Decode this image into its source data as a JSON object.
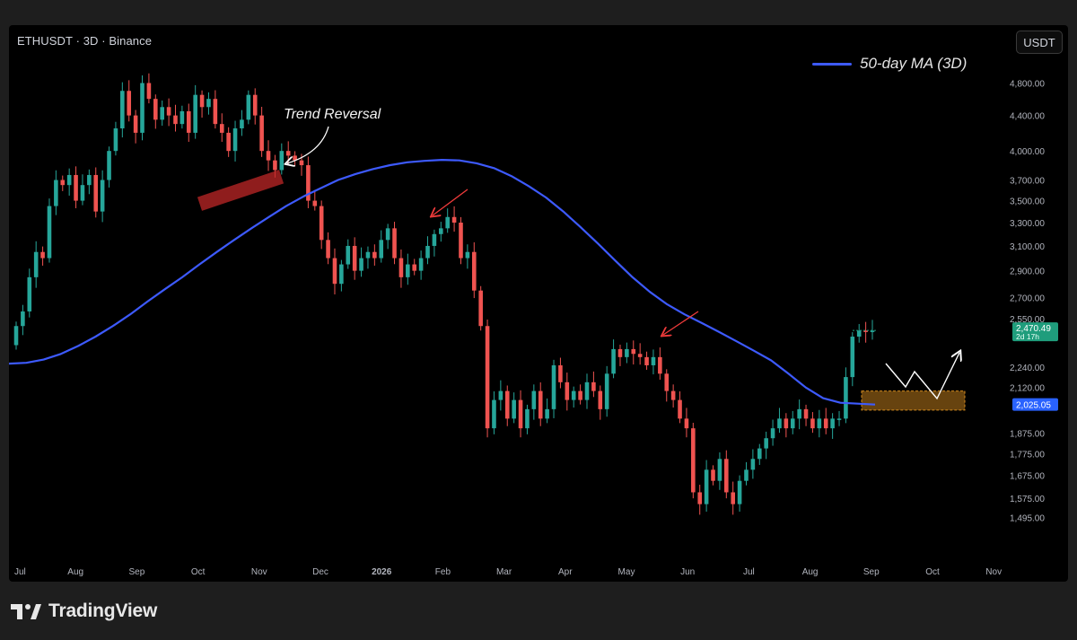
{
  "header": {
    "symbol_title": "ETHUSDT · 3D · Binance",
    "currency_button": "USDT"
  },
  "legend": {
    "ma_label": "50-day MA (3D)",
    "ma_color": "#3d5afe"
  },
  "annotation": {
    "trend_reversal": "Trend Reversal"
  },
  "footer": {
    "brand": "TradingView"
  },
  "colors": {
    "up": "#26a69a",
    "down": "#ef5350",
    "ma": "#3d5afe",
    "price_badge": "#1f9d7c",
    "ma_badge": "#2962ff",
    "zone_fill": "#8a5a14",
    "zone_border": "#d48a1e",
    "reversal_box": "#c62828"
  },
  "chart_data": {
    "type": "candlestick",
    "title": "ETHUSDT · 3D · Binance",
    "x_ticks": [
      "Jul",
      "Aug",
      "Sep",
      "Oct",
      "Nov",
      "Dec",
      "2026",
      "Feb",
      "Mar",
      "Apr",
      "May",
      "Jun",
      "Jul",
      "Aug",
      "Sep",
      "Oct",
      "Nov"
    ],
    "y_ticks": [
      4800,
      4400,
      4000,
      3700,
      3500,
      3300,
      3100,
      2900,
      2700,
      2550,
      2240,
      2120,
      1875,
      1775,
      1675,
      1575,
      1495
    ],
    "y_tick_labels": [
      "4,800.00",
      "4,400.00",
      "4,000.00",
      "3,700.00",
      "3,500.00",
      "3,300.00",
      "3,100.00",
      "2,900.00",
      "2,700.00",
      "2,550.00",
      "2,240.00",
      "2,120.00",
      "1,875.00",
      "1,775.00",
      "1,675.00",
      "1,575.00",
      "1,495.00"
    ],
    "y_scale": "log",
    "ylim": [
      1420,
      5500
    ],
    "current_price": {
      "value": 2470.49,
      "label": "2,470.49",
      "countdown": "2d 17h"
    },
    "ma_value": {
      "value": 2025.05,
      "label": "2,025.05"
    },
    "support_zone": [
      1995,
      2100
    ],
    "candle_closes": [
      2500,
      2600,
      2850,
      3050,
      3000,
      3450,
      3700,
      3650,
      3750,
      3500,
      3650,
      3750,
      3400,
      3700,
      4000,
      4250,
      4700,
      4400,
      4200,
      4800,
      4600,
      4350,
      4500,
      4400,
      4300,
      4450,
      4200,
      4650,
      4500,
      4600,
      4300,
      4200,
      4000,
      4250,
      4350,
      4650,
      4400,
      4000,
      3900,
      3800,
      4000,
      3950,
      3900,
      3850,
      3500,
      3450,
      3150,
      3000,
      2800,
      2950,
      3100,
      2900,
      3000,
      3050,
      3000,
      3150,
      3250,
      3000,
      2850,
      2950,
      2900,
      3000,
      3100,
      3200,
      3250,
      3350,
      3300,
      3000,
      3050,
      2750,
      2500,
      1900,
      2050,
      2100,
      1950,
      2050,
      1900,
      2000,
      2100,
      1950,
      2000,
      2250,
      2150,
      2050,
      2100,
      2050,
      2150,
      2100,
      2000,
      2200,
      2350,
      2300,
      2350,
      2320,
      2300,
      2250,
      2300,
      2200,
      2100,
      2050,
      1950,
      1900,
      1600,
      1550,
      1700,
      1650,
      1750,
      1600,
      1550,
      1650,
      1700,
      1750,
      1800,
      1850,
      1900,
      1950,
      1900,
      1950,
      2000,
      1950,
      1900,
      1950,
      1900,
      1950,
      1950,
      2180,
      2430,
      2470,
      2460,
      2470
    ],
    "ma_values": [
      2260,
      2265,
      2285,
      2320,
      2370,
      2430,
      2500,
      2580,
      2670,
      2760,
      2850,
      2950,
      3050,
      3150,
      3250,
      3350,
      3450,
      3540,
      3620,
      3700,
      3760,
      3810,
      3850,
      3880,
      3895,
      3905,
      3900,
      3870,
      3820,
      3740,
      3640,
      3530,
      3400,
      3260,
      3120,
      2980,
      2850,
      2740,
      2650,
      2580,
      2520,
      2460,
      2400,
      2340,
      2280,
      2200,
      2120,
      2060,
      2035,
      2030,
      2025
    ]
  }
}
